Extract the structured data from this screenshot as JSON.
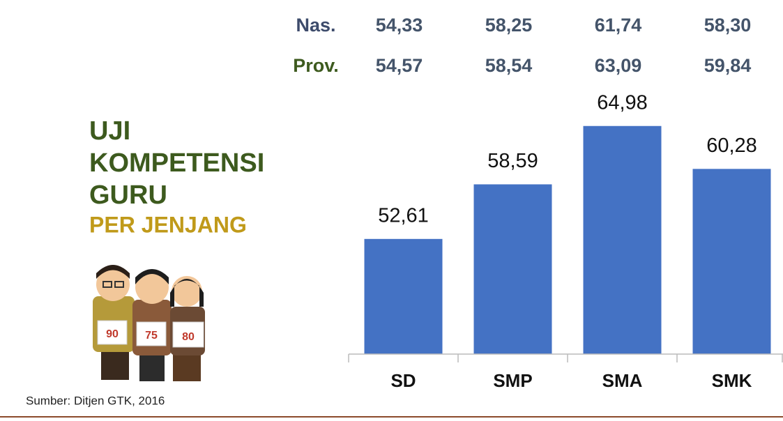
{
  "chart_data": {
    "type": "bar",
    "title_lines": [
      "UJI",
      "KOMPETENSI",
      "GURU"
    ],
    "subtitle": "PER JENJANG",
    "source": "Sumber: Ditjen GTK, 2016",
    "categories": [
      "SD",
      "SMP",
      "SMA",
      "SMK"
    ],
    "values": [
      52.61,
      58.59,
      64.98,
      60.28
    ],
    "value_labels": [
      "52,61",
      "58,59",
      "64,98",
      "60,28"
    ],
    "color": "#4472c4",
    "ylim": [
      40,
      70
    ],
    "reference_rows": [
      {
        "name": "Nas.",
        "color": "#3d4b6b",
        "values": [
          54.33,
          58.25,
          61.74,
          58.3
        ],
        "value_labels": [
          "54,33",
          "58,25",
          "61,74",
          "58,30"
        ]
      },
      {
        "name": "Prov.",
        "color": "#3d5a1e",
        "values": [
          54.57,
          58.54,
          63.09,
          59.84
        ],
        "value_labels": [
          "54,57",
          "58,54",
          "63,09",
          "59,84"
        ]
      }
    ],
    "illustration_cards": [
      "90",
      "75",
      "80"
    ]
  }
}
